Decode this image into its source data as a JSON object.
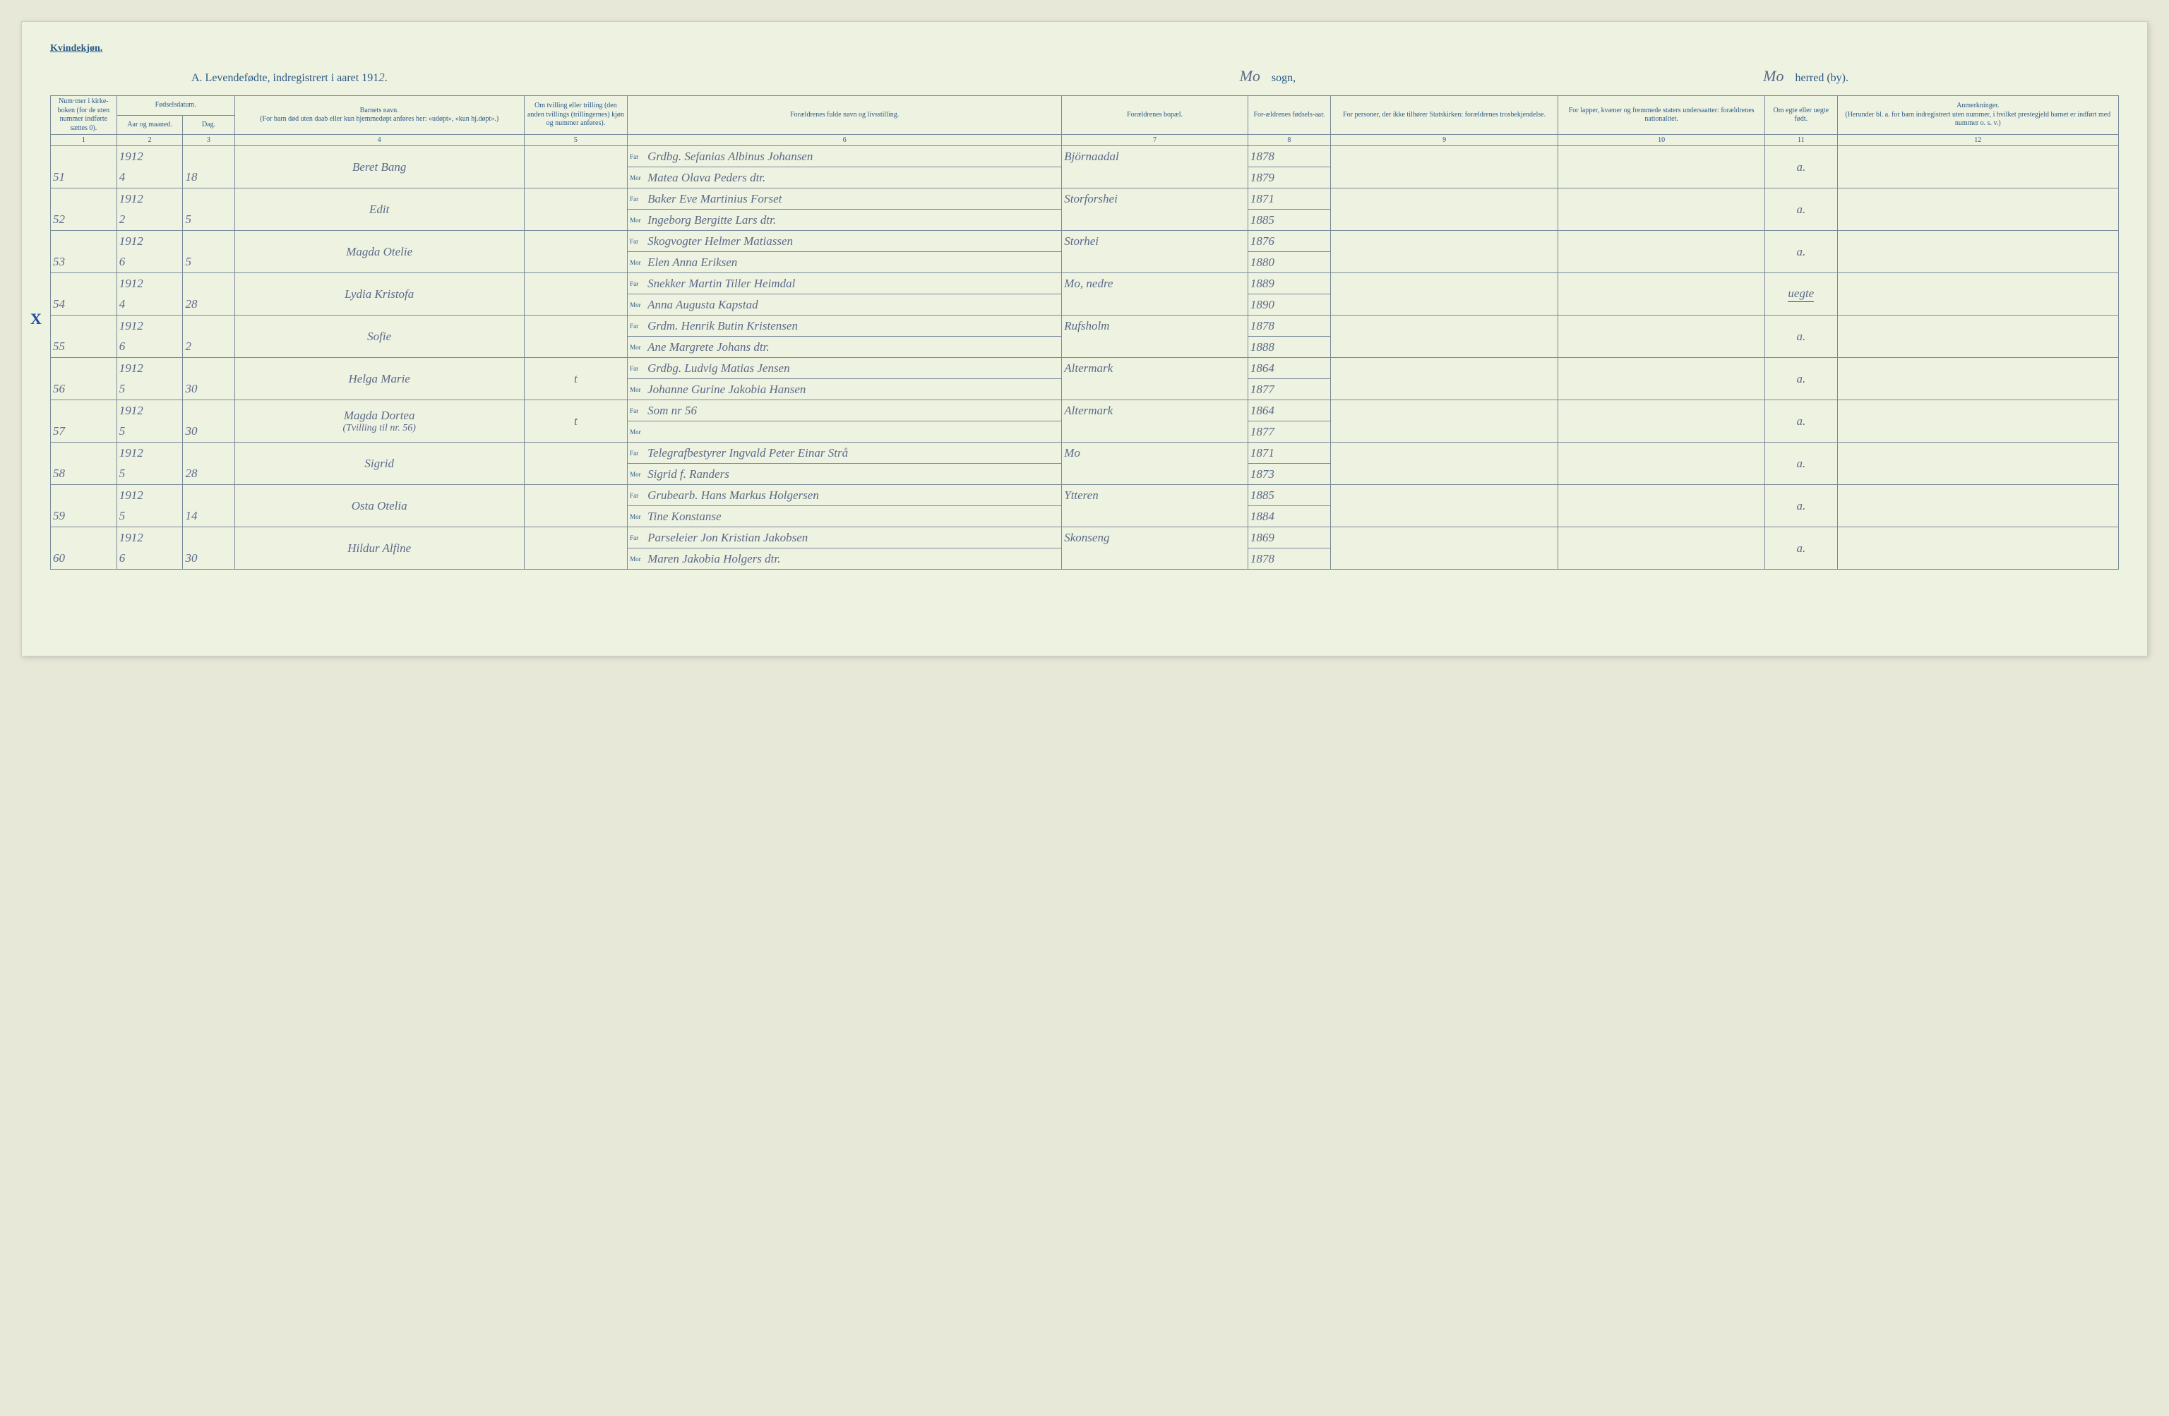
{
  "header": {
    "gender_label": "Kvindekjøn.",
    "title_prefix": "A.  Levendefødte, indregistrert i aaret 191",
    "year_last_digit": "2",
    "sogn_value": "Mo",
    "sogn_label": "sogn,",
    "herred_value": "Mo",
    "herred_label": "herred (by)."
  },
  "columns": {
    "c1": "Num·mer i kirke-boken (for de uten nummer indførte sættes 0).",
    "c2_group": "Fødselsdatum.",
    "c2": "Aar og maaned.",
    "c3": "Dag.",
    "c4": "Barnets navn.\n(For barn død uten daab eller kun hjemmedøpt anføres her: «udøpt», «kun hj.døpt».)",
    "c5": "Om tvilling eller trilling (den anden tvillings (trillingernes) kjøn og nummer anføres).",
    "c6": "Forældrenes fulde navn og livsstilling.",
    "c7": "Forældrenes bopæl.",
    "c8": "For-ældrenes fødsels-aar.",
    "c9": "For personer, der ikke tilhører Statskirken: forældrenes trosbekjendelse.",
    "c10": "For lapper, kvæner og fremmede staters undersaatter: forældrenes nationalitet.",
    "c11": "Om egte eller uegte født.",
    "c12": "Anmerkninger.\n(Herunder bl. a. for barn indregistrert uten nummer, i hvilket prestegjeld barnet er indført med nummer o. s. v.)"
  },
  "colnums": [
    "1",
    "2",
    "3",
    "4",
    "5",
    "6",
    "7",
    "8",
    "9",
    "10",
    "11",
    "12"
  ],
  "parent_labels": {
    "far": "Far",
    "mor": "Mor"
  },
  "entries": [
    {
      "num": "51",
      "year": "1912",
      "month": "4",
      "day": "18",
      "child": "Beret Bang",
      "far": "Grdbg. Sefanias Albinus Johansen",
      "mor": "Matea Olava Peders dtr.",
      "bopael": "Björnaadal",
      "far_aar": "1878",
      "mor_aar": "1879",
      "egte": "a."
    },
    {
      "num": "52",
      "year": "1912",
      "month": "2",
      "day": "5",
      "child": "Edit",
      "far": "Baker Eve Martinius Forset",
      "mor": "Ingeborg Bergitte Lars dtr.",
      "bopael": "Storforshei",
      "far_aar": "1871",
      "mor_aar": "1885",
      "egte": "a."
    },
    {
      "num": "53",
      "year": "1912",
      "month": "6",
      "day": "5",
      "child": "Magda Otelie",
      "far": "Skogvogter Helmer Matiassen",
      "mor": "Elen Anna Eriksen",
      "bopael": "Storhei",
      "far_aar": "1876",
      "mor_aar": "1880",
      "egte": "a."
    },
    {
      "num": "54",
      "year": "1912",
      "month": "4",
      "day": "28",
      "child": "Lydia Kristofa",
      "far": "Snekker Martin Tiller Heimdal",
      "mor": "Anna Augusta Kapstad",
      "bopael": "Mo, nedre",
      "far_aar": "1889",
      "mor_aar": "1890",
      "egte": "uegte",
      "egte_underline": true
    },
    {
      "num": "55",
      "year": "1912",
      "month": "6",
      "day": "2",
      "child": "Sofie",
      "far": "Grdm. Henrik Butin Kristensen",
      "mor": "Ane Margrete Johans dtr.",
      "bopael": "Rufsholm",
      "far_aar": "1878",
      "mor_aar": "1888",
      "egte": "a."
    },
    {
      "num": "56",
      "year": "1912",
      "month": "5",
      "day": "30",
      "child": "Helga Marie",
      "far": "Grdbg. Ludvig Matias Jensen",
      "mor": "Johanne Gurine Jakobia Hansen",
      "bopael": "Altermark",
      "far_aar": "1864",
      "mor_aar": "1877",
      "tvilling": "t",
      "egte": "a."
    },
    {
      "num": "57",
      "year": "1912",
      "month": "5",
      "day": "30",
      "child": "Magda Dortea",
      "child_note": "(Tvilling til nr. 56)",
      "far": "Som nr 56",
      "mor": "",
      "bopael": "Altermark",
      "far_aar": "1864",
      "mor_aar": "1877",
      "tvilling": "t",
      "egte": "a."
    },
    {
      "num": "58",
      "year": "1912",
      "month": "5",
      "day": "28",
      "child": "Sigrid",
      "far": "Telegrafbestyrer Ingvald Peter Einar Strå",
      "mor": "Sigrid f. Randers",
      "bopael": "Mo",
      "far_aar": "1871",
      "mor_aar": "1873",
      "egte": "a."
    },
    {
      "num": "59",
      "year": "1912",
      "month": "5",
      "day": "14",
      "child": "Osta Otelia",
      "far": "Grubearb. Hans Markus Holgersen",
      "mor": "Tine Konstanse",
      "bopael": "Ytteren",
      "far_aar": "1885",
      "mor_aar": "1884",
      "egte": "a."
    },
    {
      "num": "60",
      "year": "1912",
      "month": "6",
      "day": "30",
      "child": "Hildur Alfine",
      "far": "Parseleier Jon Kristian Jakobsen",
      "mor": "Maren Jakobia Holgers dtr.",
      "bopael": "Skonseng",
      "far_aar": "1869",
      "mor_aar": "1878",
      "egte": "a."
    }
  ],
  "x_mark": "X"
}
